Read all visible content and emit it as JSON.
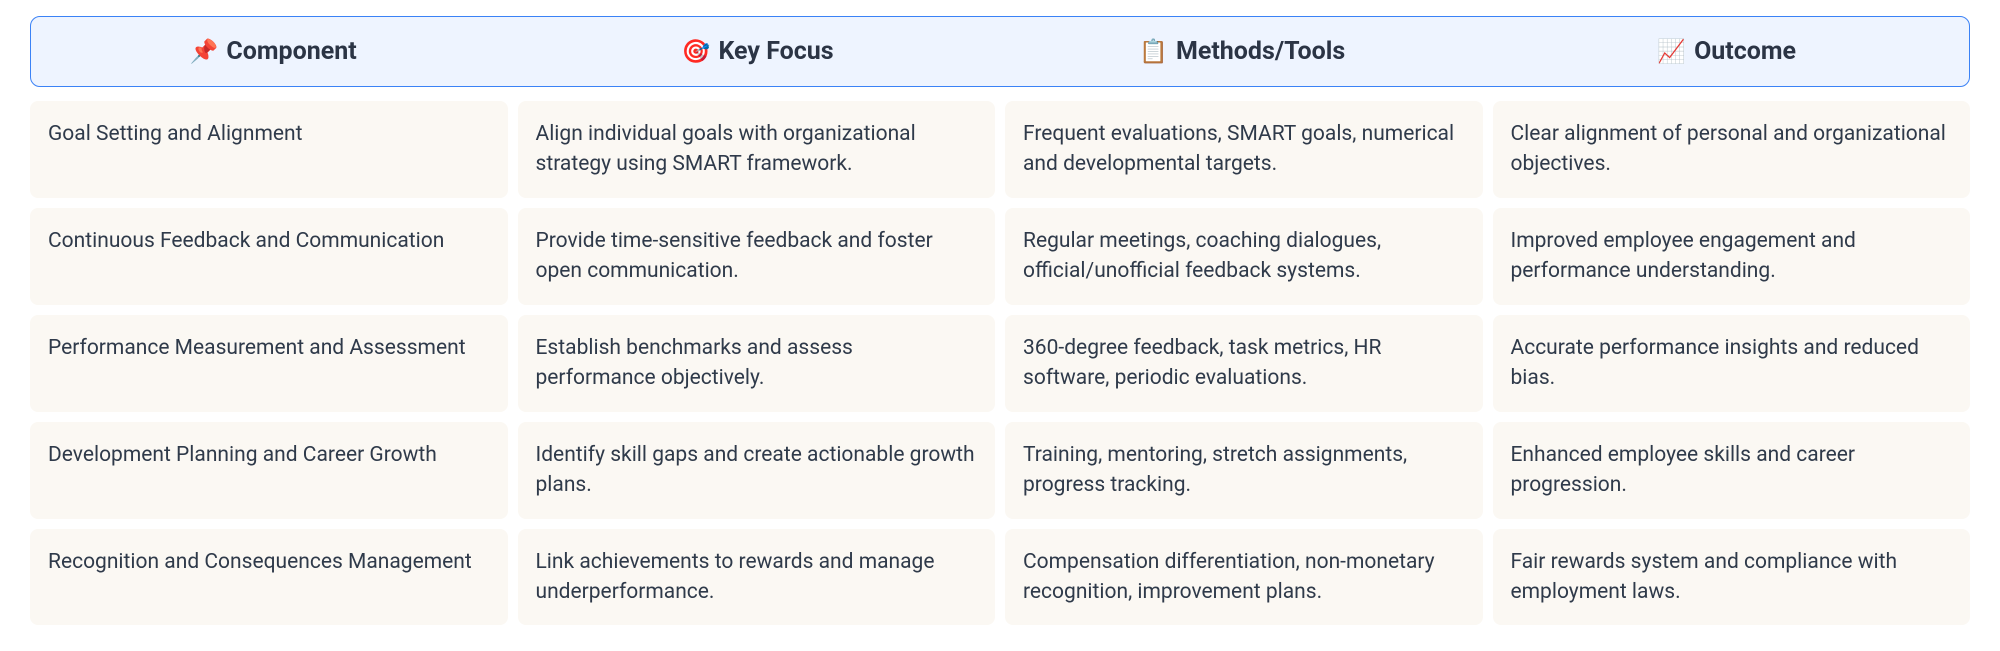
{
  "colors": {
    "header_bg": "#eef4ff",
    "header_border": "#3b82f6",
    "cell_bg": "#fbf8f3",
    "text": "#2f3a4a",
    "header_text": "#2b3445"
  },
  "columns": [
    {
      "icon": "📌",
      "label": "Component"
    },
    {
      "icon": "🎯",
      "label": "Key Focus"
    },
    {
      "icon": "📋",
      "label": "Methods/Tools"
    },
    {
      "icon": "📈",
      "label": "Outcome"
    }
  ],
  "rows": [
    {
      "component": "Goal Setting and Alignment",
      "key_focus": "Align individual goals with organizational strategy using SMART framework.",
      "methods": "Frequent evaluations, SMART goals, numerical and developmental targets.",
      "outcome": "Clear alignment of personal and organizational objectives."
    },
    {
      "component": "Continuous Feedback and Communication",
      "key_focus": "Provide time-sensitive feedback and foster open communication.",
      "methods": "Regular meetings, coaching dialogues, official/unofficial feedback systems.",
      "outcome": "Improved employee engagement and performance understanding."
    },
    {
      "component": "Performance Measurement and Assessment",
      "key_focus": "Establish benchmarks and assess performance objectively.",
      "methods": "360-degree feedback, task metrics, HR software, periodic evaluations.",
      "outcome": "Accurate performance insights and reduced bias."
    },
    {
      "component": "Development Planning and Career Growth",
      "key_focus": "Identify skill gaps and create actionable growth plans.",
      "methods": "Training, mentoring, stretch assignments, progress tracking.",
      "outcome": "Enhanced employee skills and career progression."
    },
    {
      "component": "Recognition and Consequences Management",
      "key_focus": "Link achievements to rewards and manage underperformance.",
      "methods": "Compensation differentiation, non-monetary recognition, improvement plans.",
      "outcome": "Fair rewards system and compliance with employment laws."
    }
  ]
}
